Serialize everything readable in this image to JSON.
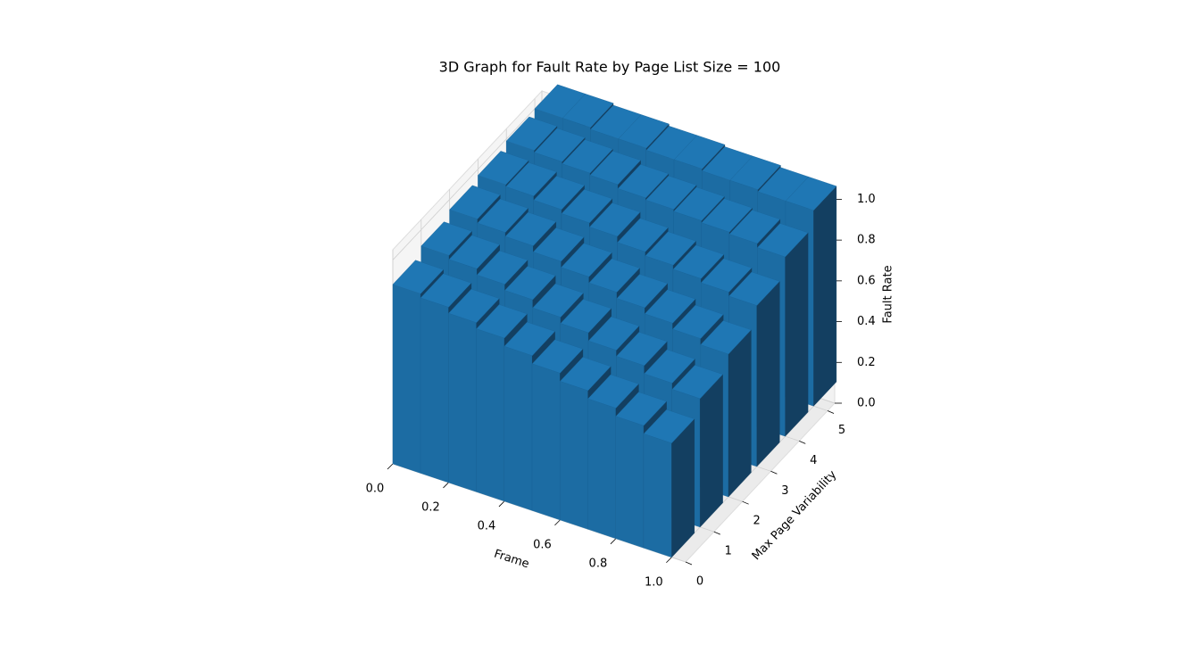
{
  "chart_data": {
    "type": "bar3d",
    "title": "3D Graph for Fault Rate by Page List Size = 100",
    "x_label": "Frame",
    "y_label": "Max Page Variability",
    "z_label": "Fault Rate",
    "x": [
      0.0,
      0.1,
      0.2,
      0.3,
      0.4,
      0.5,
      0.6,
      0.7,
      0.8,
      0.9
    ],
    "y": [
      0,
      1,
      2,
      3,
      4,
      5
    ],
    "values": [
      [
        0.88,
        0.86,
        0.83,
        0.8,
        0.76,
        0.72,
        0.68,
        0.64,
        0.6,
        0.56
      ],
      [
        0.92,
        0.9,
        0.87,
        0.84,
        0.8,
        0.77,
        0.73,
        0.7,
        0.66,
        0.63
      ],
      [
        0.95,
        0.93,
        0.91,
        0.88,
        0.85,
        0.82,
        0.79,
        0.76,
        0.73,
        0.7
      ],
      [
        0.97,
        0.96,
        0.94,
        0.92,
        0.9,
        0.87,
        0.85,
        0.83,
        0.81,
        0.79
      ],
      [
        0.99,
        0.98,
        0.97,
        0.96,
        0.94,
        0.93,
        0.92,
        0.91,
        0.9,
        0.88
      ],
      [
        1.0,
        1.0,
        0.99,
        0.99,
        0.98,
        0.98,
        0.97,
        0.97,
        0.96,
        0.96
      ]
    ],
    "color": "#1f77b4",
    "xlim": [
      0,
      1.05
    ],
    "ylim": [
      0,
      5.25
    ],
    "zlim": [
      0,
      1.05
    ],
    "xticks": [
      {
        "value": 0,
        "label": "0.0"
      },
      0.2,
      0.4,
      0.6,
      0.8,
      {
        "value": 1,
        "label": "1.0"
      }
    ],
    "yticks": [
      0,
      1,
      2,
      3,
      4,
      5
    ],
    "zticks": [
      {
        "value": 0,
        "label": "0.0"
      },
      0.2,
      0.4,
      0.6,
      0.8,
      {
        "value": 1,
        "label": "1.0"
      }
    ],
    "grid": true
  }
}
